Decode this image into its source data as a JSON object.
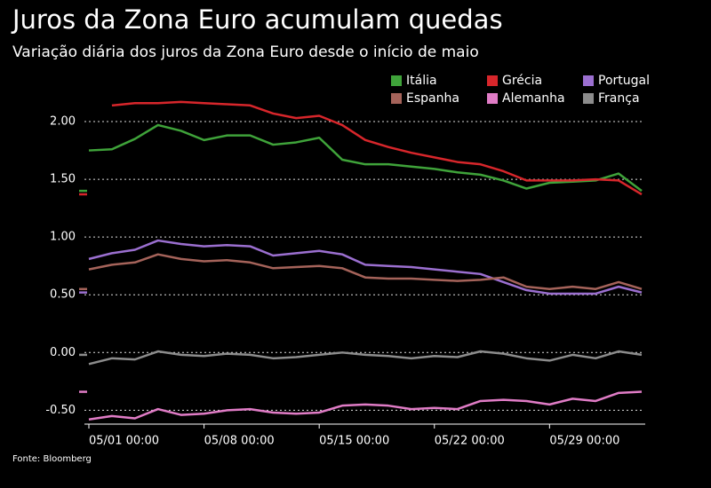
{
  "chart_data": {
    "type": "line",
    "title": "Juros da Zona Euro acumulam quedas",
    "subtitle": "Variação diária dos juros da Zona Euro desde o início de maio",
    "source": "Fonte: Bloomberg",
    "categories": [
      "05/01 00:00",
      null,
      null,
      null,
      null,
      "05/08 00:00",
      null,
      null,
      null,
      null,
      "05/15 00:00",
      null,
      null,
      null,
      null,
      "05/22 00:00",
      null,
      null,
      null,
      null,
      "05/29 00:00",
      null,
      null,
      null,
      null
    ],
    "series": [
      {
        "name": "Itália",
        "color": "#3fa33a",
        "values": [
          1.75,
          1.76,
          1.85,
          1.97,
          1.92,
          1.84,
          1.88,
          1.88,
          1.8,
          1.82,
          1.86,
          1.67,
          1.63,
          1.63,
          1.61,
          1.59,
          1.56,
          1.54,
          1.49,
          1.42,
          1.47,
          1.48,
          1.49,
          1.55,
          1.4
        ]
      },
      {
        "name": "Grécia",
        "color": "#d7262b",
        "values": [
          null,
          2.14,
          2.16,
          2.16,
          2.17,
          2.16,
          2.15,
          2.14,
          2.07,
          2.03,
          2.05,
          1.97,
          1.84,
          1.78,
          1.73,
          1.69,
          1.65,
          1.63,
          1.57,
          1.49,
          1.49,
          1.49,
          1.5,
          1.49,
          1.37
        ]
      },
      {
        "name": "Portugal",
        "color": "#9b6fd0",
        "values": [
          0.81,
          0.86,
          0.89,
          0.97,
          0.94,
          0.92,
          0.93,
          0.92,
          0.84,
          0.86,
          0.88,
          0.85,
          0.76,
          0.75,
          0.74,
          0.72,
          0.7,
          0.68,
          0.61,
          0.54,
          0.51,
          0.51,
          0.51,
          0.57,
          0.52
        ]
      },
      {
        "name": "Espanha",
        "color": "#a5635a",
        "values": [
          0.72,
          0.76,
          0.78,
          0.85,
          0.81,
          0.79,
          0.8,
          0.78,
          0.73,
          0.74,
          0.75,
          0.73,
          0.65,
          0.64,
          0.64,
          0.63,
          0.62,
          0.63,
          0.65,
          0.57,
          0.55,
          0.57,
          0.55,
          0.61,
          0.55
        ]
      },
      {
        "name": "Alemanha",
        "color": "#e07cc6",
        "values": [
          -0.58,
          -0.55,
          -0.57,
          -0.49,
          -0.54,
          -0.53,
          -0.5,
          -0.49,
          -0.52,
          -0.53,
          -0.52,
          -0.46,
          -0.45,
          -0.46,
          -0.49,
          -0.48,
          -0.49,
          -0.42,
          -0.41,
          -0.42,
          -0.45,
          -0.4,
          -0.42,
          -0.35,
          -0.34
        ]
      },
      {
        "name": "França",
        "color": "#8c8c8c",
        "values": [
          -0.1,
          -0.05,
          -0.06,
          0.01,
          -0.02,
          -0.03,
          -0.01,
          -0.02,
          -0.05,
          -0.04,
          -0.02,
          0.0,
          -0.02,
          -0.03,
          -0.05,
          -0.03,
          -0.04,
          0.01,
          -0.01,
          -0.05,
          -0.07,
          -0.02,
          -0.05,
          0.01,
          -0.02
        ]
      }
    ],
    "ylim": [
      -0.62,
      2.2
    ],
    "yticks": [
      {
        "value": -0.5,
        "label": "-0.50"
      },
      {
        "value": 0,
        "label": "0.00"
      },
      {
        "value": 0.5,
        "label": "0.50"
      },
      {
        "value": 1,
        "label": "1.00"
      },
      {
        "value": 1.5,
        "label": "1.50"
      },
      {
        "value": 2,
        "label": "2.00"
      }
    ],
    "grid": true,
    "legend": "top-right"
  }
}
